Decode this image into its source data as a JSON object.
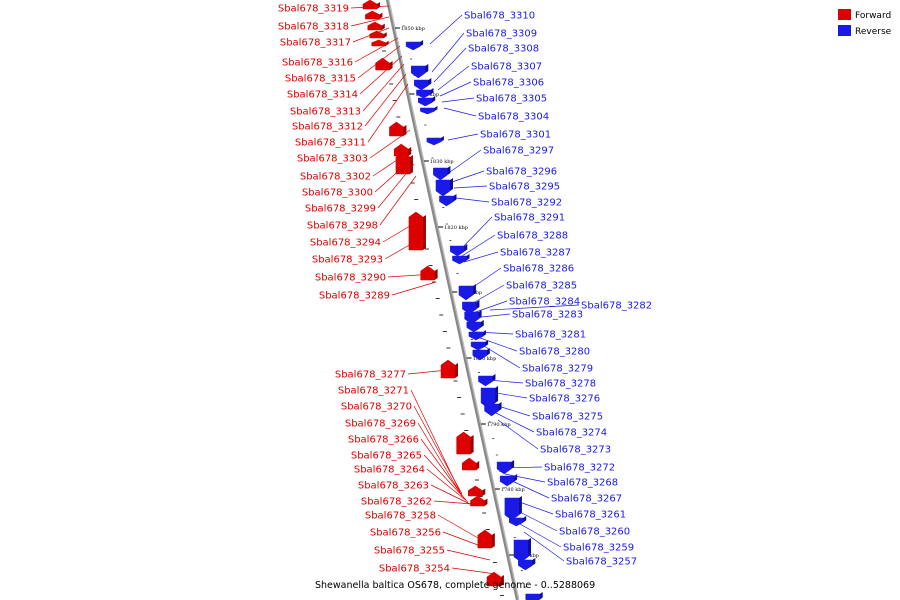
{
  "colors": {
    "forward": "#dd0000",
    "reverse": "#1a1ae6",
    "backbone": "#888888"
  },
  "legend": {
    "forward_label": "Forward",
    "reverse_label": "Reverse"
  },
  "caption": "Shewanella baltica OS678, complete genome - 0..5288069",
  "ticks": [
    "1770 kbp",
    "1780 kbp",
    "1790 kbp",
    "1800 kbp",
    "1810 kbp",
    "1820 kbp",
    "1830 kbp",
    "1840 kbp",
    "1850 kbp"
  ],
  "forward_genes": [
    "Sbal678_3319",
    "Sbal678_3318",
    "Sbal678_3317",
    "Sbal678_3316",
    "Sbal678_3315",
    "Sbal678_3314",
    "Sbal678_3313",
    "Sbal678_3312",
    "Sbal678_3311",
    "Sbal678_3303",
    "Sbal678_3302",
    "Sbal678_3300",
    "Sbal678_3299",
    "Sbal678_3298",
    "Sbal678_3294",
    "Sbal678_3293",
    "Sbal678_3290",
    "Sbal678_3289",
    "Sbal678_3277",
    "Sbal678_3271",
    "Sbal678_3270",
    "Sbal678_3269",
    "Sbal678_3266",
    "Sbal678_3265",
    "Sbal678_3264",
    "Sbal678_3263",
    "Sbal678_3262",
    "Sbal678_3258",
    "Sbal678_3256",
    "Sbal678_3255",
    "Sbal678_3254"
  ],
  "reverse_genes": [
    "Sbal678_3310",
    "Sbal678_3309",
    "Sbal678_3308",
    "Sbal678_3307",
    "Sbal678_3306",
    "Sbal678_3305",
    "Sbal678_3304",
    "Sbal678_3301",
    "Sbal678_3297",
    "Sbal678_3296",
    "Sbal678_3295",
    "Sbal678_3292",
    "Sbal678_3291",
    "Sbal678_3288",
    "Sbal678_3287",
    "Sbal678_3286",
    "Sbal678_3285",
    "Sbal678_3284",
    "Sbal678_3282",
    "Sbal678_3283",
    "Sbal678_3281",
    "Sbal678_3280",
    "Sbal678_3279",
    "Sbal678_3278",
    "Sbal678_3276",
    "Sbal678_3275",
    "Sbal678_3274",
    "Sbal678_3273",
    "Sbal678_3272",
    "Sbal678_3268",
    "Sbal678_3267",
    "Sbal678_3261",
    "Sbal678_3260",
    "Sbal678_3259",
    "Sbal678_3257"
  ]
}
